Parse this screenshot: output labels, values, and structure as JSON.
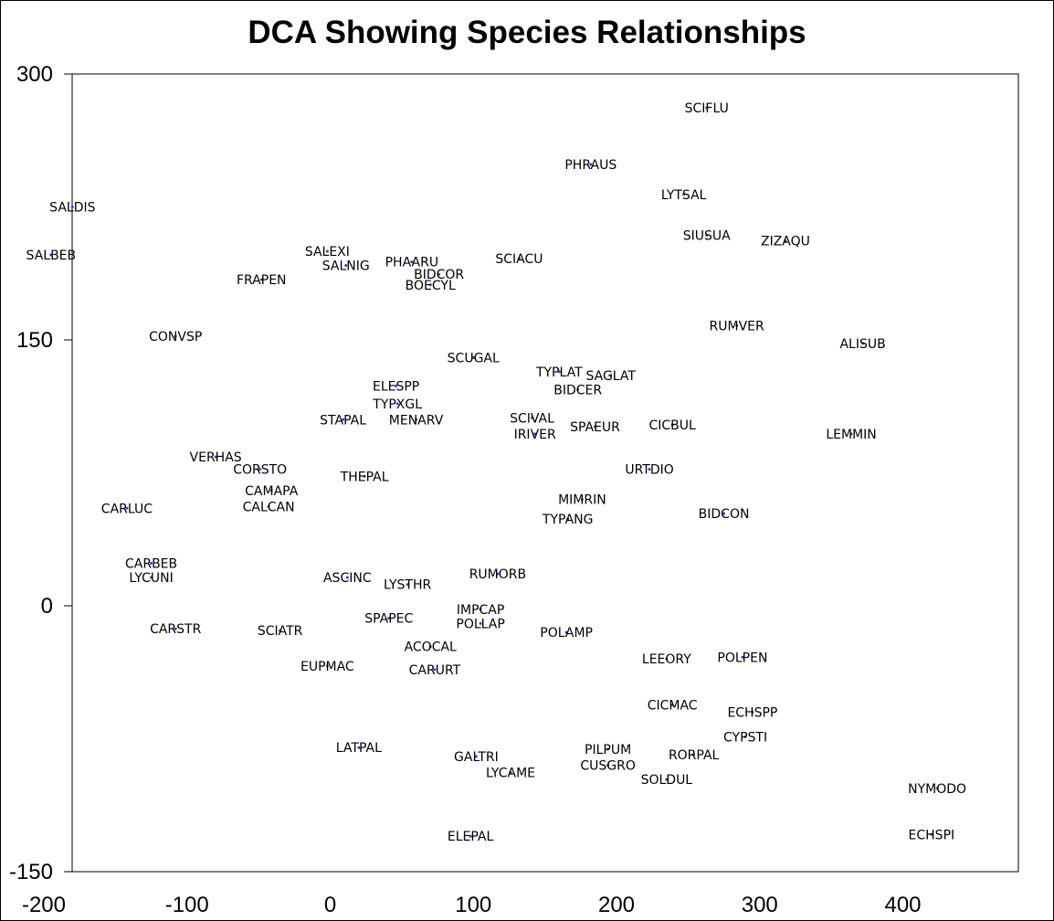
{
  "chart_data": {
    "type": "scatter",
    "title": "DCA Showing Species Relationships",
    "xlabel": "",
    "ylabel": "",
    "xlim": [
      -200,
      450
    ],
    "ylim": [
      -150,
      300
    ],
    "x_ticks": [
      -200,
      -100,
      0,
      100,
      200,
      300,
      400
    ],
    "x_tick_labels": [
      "-200",
      "-100",
      "0",
      "100",
      "200",
      "300",
      "400"
    ],
    "y_ticks": [
      300,
      150,
      0,
      -150
    ],
    "y_tick_labels": [
      "300",
      "150",
      "0",
      "-150"
    ],
    "grid": false,
    "points": [
      {
        "label": "SCIFLU",
        "x": 263,
        "y": 281
      },
      {
        "label": "PHRAUS",
        "x": 182,
        "y": 249
      },
      {
        "label": "LYTSAL",
        "x": 247,
        "y": 232
      },
      {
        "label": "SALDIS",
        "x": -180,
        "y": 225
      },
      {
        "label": "SIUSUA",
        "x": 263,
        "y": 209
      },
      {
        "label": "ZIZAQU",
        "x": 318,
        "y": 206
      },
      {
        "label": "SALBEB",
        "x": -195,
        "y": 198
      },
      {
        "label": "SALEXI",
        "x": -2,
        "y": 200
      },
      {
        "label": "SALNIG",
        "x": 11,
        "y": 192
      },
      {
        "label": "PHAARU",
        "x": 57,
        "y": 194
      },
      {
        "label": "SCIACU",
        "x": 132,
        "y": 196
      },
      {
        "label": "BIDCOR",
        "x": 76,
        "y": 187
      },
      {
        "label": "BOECYL",
        "x": 70,
        "y": 181
      },
      {
        "label": "FRAPEN",
        "x": -48,
        "y": 184
      },
      {
        "label": "RUMVER",
        "x": 284,
        "y": 158
      },
      {
        "label": "ALISUB",
        "x": 372,
        "y": 148
      },
      {
        "label": "CONVSP",
        "x": -108,
        "y": 152
      },
      {
        "label": "SCUGAL",
        "x": 100,
        "y": 140
      },
      {
        "label": "TYPLAT",
        "x": 160,
        "y": 132
      },
      {
        "label": "SAGLAT",
        "x": 196,
        "y": 130
      },
      {
        "label": "BIDCER",
        "x": 173,
        "y": 122
      },
      {
        "label": "ELESPP",
        "x": 46,
        "y": 124
      },
      {
        "label": "TYPXGL",
        "x": 47,
        "y": 114
      },
      {
        "label": "STAPAL",
        "x": 9,
        "y": 105
      },
      {
        "label": "MENARV",
        "x": 60,
        "y": 105
      },
      {
        "label": "SCIVAL",
        "x": 141,
        "y": 106
      },
      {
        "label": "SPAEUR",
        "x": 185,
        "y": 101
      },
      {
        "label": "CICBUL",
        "x": 239,
        "y": 102
      },
      {
        "label": "IRIVER",
        "x": 143,
        "y": 97
      },
      {
        "label": "LEMMIN",
        "x": 364,
        "y": 97
      },
      {
        "label": "VERHAS",
        "x": -80,
        "y": 84
      },
      {
        "label": "CORSTO",
        "x": -49,
        "y": 77
      },
      {
        "label": "URTDIO",
        "x": 223,
        "y": 77
      },
      {
        "label": "THEPAL",
        "x": 24,
        "y": 73
      },
      {
        "label": "CAMAPA",
        "x": -41,
        "y": 65
      },
      {
        "label": "CALCAN",
        "x": -43,
        "y": 56
      },
      {
        "label": "MIMRIN",
        "x": 176,
        "y": 60
      },
      {
        "label": "CARLUC",
        "x": -142,
        "y": 55
      },
      {
        "label": "BIDCON",
        "x": 275,
        "y": 52
      },
      {
        "label": "TYPANG",
        "x": 166,
        "y": 49
      },
      {
        "label": "CARBEB",
        "x": -125,
        "y": 24
      },
      {
        "label": "LYCUNI",
        "x": -125,
        "y": 16
      },
      {
        "label": "RUMORB",
        "x": 117,
        "y": 18
      },
      {
        "label": "ASCINC",
        "x": 12,
        "y": 16
      },
      {
        "label": "LYSTHR",
        "x": 54,
        "y": 12
      },
      {
        "label": "IMPCAP",
        "x": 105,
        "y": -2
      },
      {
        "label": "SPAPEC",
        "x": 41,
        "y": -7
      },
      {
        "label": "POLLAP",
        "x": 105,
        "y": -10
      },
      {
        "label": "CARSTR",
        "x": -108,
        "y": -13
      },
      {
        "label": "SCIATR",
        "x": -35,
        "y": -14
      },
      {
        "label": "POLAMP",
        "x": 165,
        "y": -15
      },
      {
        "label": "ACOCAL",
        "x": 70,
        "y": -23
      },
      {
        "label": "LEEORY",
        "x": 235,
        "y": -30
      },
      {
        "label": "POLPEN",
        "x": 288,
        "y": -29
      },
      {
        "label": "EUPMAC",
        "x": -2,
        "y": -34
      },
      {
        "label": "CARURT",
        "x": 73,
        "y": -36
      },
      {
        "label": "CICMAC",
        "x": 239,
        "y": -56
      },
      {
        "label": "ECHSPP",
        "x": 295,
        "y": -60
      },
      {
        "label": "CYPSTI",
        "x": 290,
        "y": -74
      },
      {
        "label": "LATPAL",
        "x": 20,
        "y": -80
      },
      {
        "label": "GALTRI",
        "x": 102,
        "y": -85
      },
      {
        "label": "PILPUM",
        "x": 194,
        "y": -81
      },
      {
        "label": "RORPAL",
        "x": 254,
        "y": -84
      },
      {
        "label": "CUSGRO",
        "x": 194,
        "y": -90
      },
      {
        "label": "LYCAME",
        "x": 126,
        "y": -94
      },
      {
        "label": "SOLDUL",
        "x": 235,
        "y": -98
      },
      {
        "label": "NYMODO",
        "x": 424,
        "y": -103
      },
      {
        "label": "ECHSPI",
        "x": 420,
        "y": -129
      },
      {
        "label": "ELEPAL",
        "x": 98,
        "y": -130
      }
    ]
  }
}
